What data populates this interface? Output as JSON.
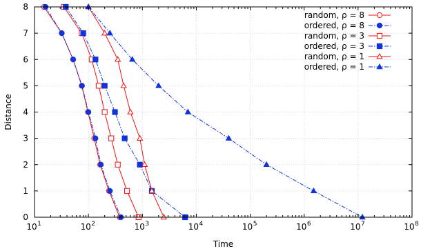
{
  "chart_data": {
    "type": "line",
    "xlabel": "Time",
    "ylabel": "Distance",
    "x_scale": "log",
    "xlim": [
      10,
      100000000
    ],
    "ylim": [
      0,
      8
    ],
    "grid": true,
    "legend_position": "top-right",
    "x_ticks": [
      {
        "value": 10,
        "base": "10",
        "exp": "1"
      },
      {
        "value": 100,
        "base": "10",
        "exp": "2"
      },
      {
        "value": 1000,
        "base": "10",
        "exp": "3"
      },
      {
        "value": 10000,
        "base": "10",
        "exp": "4"
      },
      {
        "value": 100000,
        "base": "10",
        "exp": "5"
      },
      {
        "value": 1000000,
        "base": "10",
        "exp": "6"
      },
      {
        "value": 10000000,
        "base": "10",
        "exp": "7"
      },
      {
        "value": 100000000,
        "base": "10",
        "exp": "8"
      }
    ],
    "y_ticks": [
      "0",
      "1",
      "2",
      "3",
      "4",
      "5",
      "6",
      "7",
      "8"
    ],
    "series": [
      {
        "name": "random, ρ = 8",
        "color": "#ee1111",
        "dash": "solid",
        "marker": "circle-open",
        "points": [
          [
            15,
            8
          ],
          [
            32,
            7
          ],
          [
            52,
            6
          ],
          [
            75,
            5
          ],
          [
            98,
            4
          ],
          [
            128,
            3
          ],
          [
            165,
            2
          ],
          [
            240,
            1
          ],
          [
            380,
            0
          ]
        ]
      },
      {
        "name": "ordered, ρ = 8",
        "color": "#1133dd",
        "dash": "dashdot",
        "marker": "circle-filled",
        "points": [
          [
            16,
            8
          ],
          [
            32,
            7
          ],
          [
            52,
            6
          ],
          [
            76,
            5
          ],
          [
            100,
            4
          ],
          [
            135,
            3
          ],
          [
            170,
            2
          ],
          [
            250,
            1
          ],
          [
            400,
            0
          ]
        ]
      },
      {
        "name": "random, ρ = 3",
        "color": "#ee1111",
        "dash": "solid",
        "marker": "square-open",
        "points": [
          [
            35,
            8
          ],
          [
            75,
            7
          ],
          [
            115,
            6
          ],
          [
            155,
            5
          ],
          [
            200,
            4
          ],
          [
            265,
            3
          ],
          [
            350,
            2
          ],
          [
            520,
            1
          ],
          [
            850,
            0
          ]
        ]
      },
      {
        "name": "ordered, ρ = 3",
        "color": "#1133dd",
        "dash": "dashdot",
        "marker": "square-filled",
        "points": [
          [
            38,
            8
          ],
          [
            80,
            7
          ],
          [
            135,
            6
          ],
          [
            200,
            5
          ],
          [
            310,
            4
          ],
          [
            470,
            3
          ],
          [
            900,
            2
          ],
          [
            1500,
            1
          ],
          [
            6200,
            0
          ]
        ]
      },
      {
        "name": "random, ρ = 1",
        "color": "#ee1111",
        "dash": "solid",
        "marker": "triangle-open",
        "points": [
          [
            100,
            8
          ],
          [
            200,
            7
          ],
          [
            350,
            6
          ],
          [
            450,
            5
          ],
          [
            600,
            4
          ],
          [
            900,
            3
          ],
          [
            1100,
            2
          ],
          [
            1500,
            1
          ],
          [
            2500,
            0
          ]
        ]
      },
      {
        "name": "ordered, ρ = 1",
        "color": "#1133dd",
        "dash": "dashdot",
        "marker": "triangle-filled",
        "points": [
          [
            100,
            8
          ],
          [
            250,
            7
          ],
          [
            650,
            6
          ],
          [
            2000,
            5
          ],
          [
            7000,
            4
          ],
          [
            40000,
            3
          ],
          [
            200000,
            2
          ],
          [
            1500000,
            1
          ],
          [
            12000000,
            0
          ]
        ]
      }
    ]
  }
}
